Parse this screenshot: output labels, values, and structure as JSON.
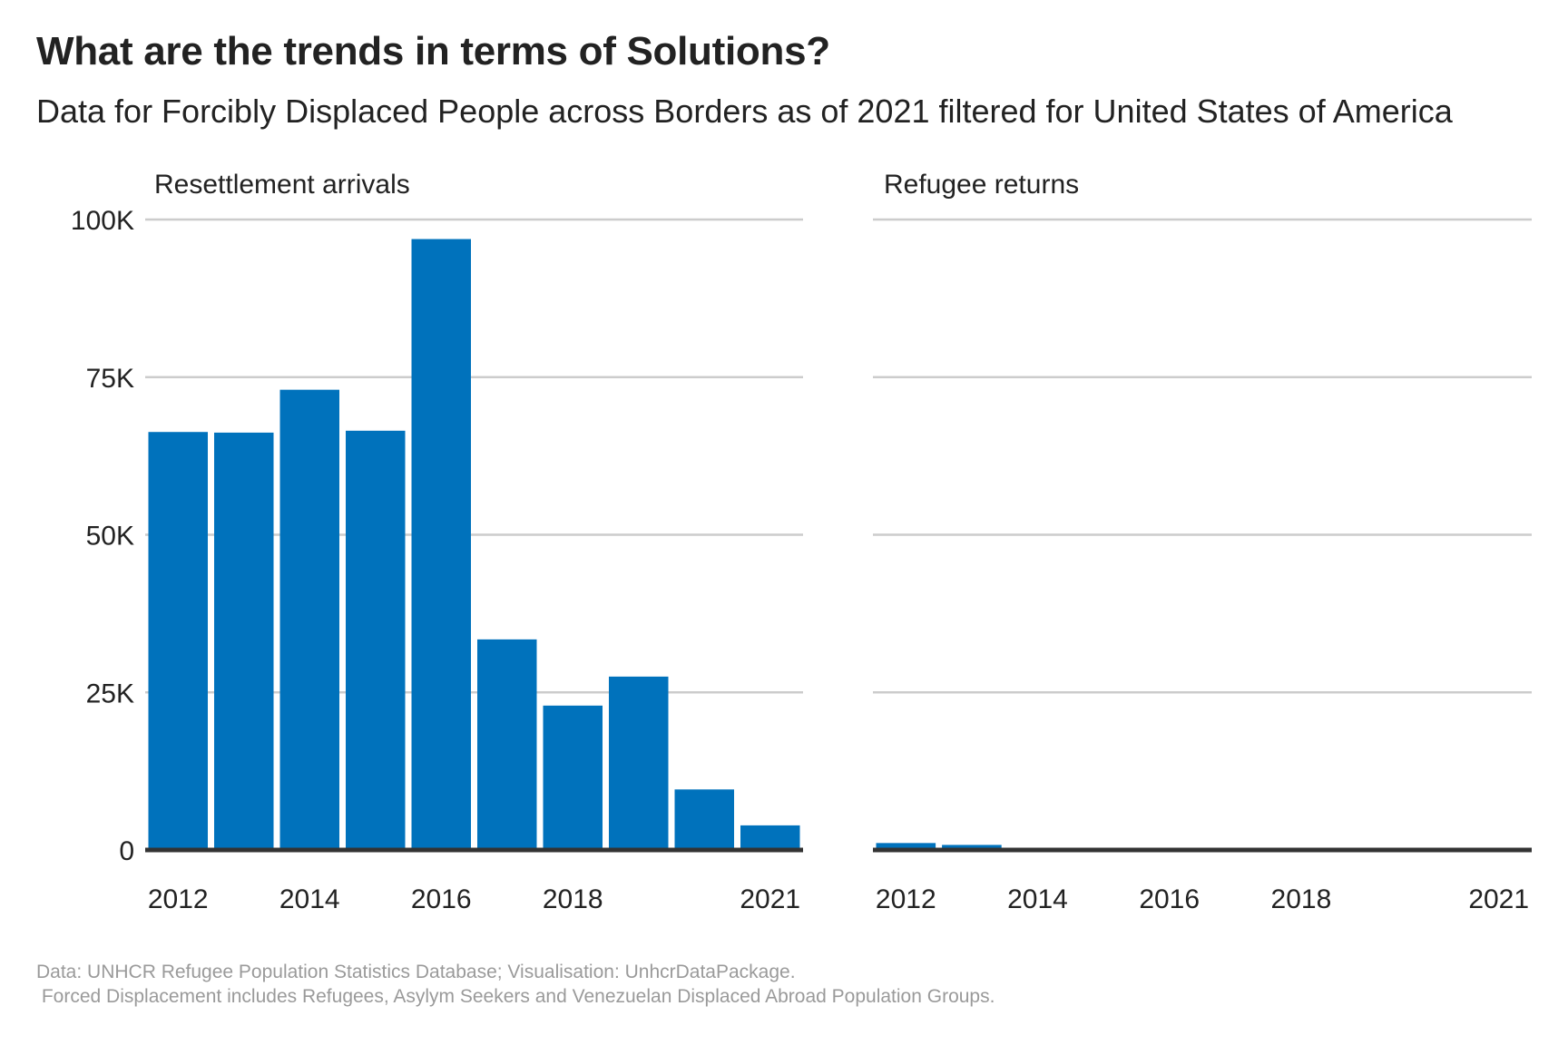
{
  "title": "What are the trends in terms of Solutions?",
  "subtitle": "Data for Forcibly Displaced People across Borders as of 2021 filtered for United States of America",
  "caption_line1": "Data: UNHCR Refugee Population Statistics Database; Visualisation: UnhcrDataPackage.",
  "caption_line2": " Forced Displacement includes Refugees, Asylym Seekers and Venezuelan Displaced Abroad Population Groups.",
  "colors": {
    "bar": "#0072bc",
    "grid": "#cccccc",
    "baseline": "#333333",
    "text": "#222222",
    "caption": "#9a9a9a"
  },
  "chart_data": [
    {
      "type": "bar",
      "title": "Resettlement arrivals",
      "x": [
        2012,
        2013,
        2014,
        2015,
        2016,
        2017,
        2018,
        2019,
        2020,
        2021
      ],
      "values": [
        66300,
        66200,
        73000,
        66500,
        96900,
        33400,
        22900,
        27500,
        9600,
        3900
      ],
      "x_tick_labels": [
        "2012",
        "2014",
        "2016",
        "2018",
        "2021"
      ],
      "x_tick_values": [
        2012,
        2014,
        2016,
        2018,
        2021
      ],
      "y_tick_labels": [
        "0",
        "25K",
        "50K",
        "75K",
        "100K"
      ],
      "y_tick_values": [
        0,
        25000,
        50000,
        75000,
        100000
      ],
      "ylim": [
        0,
        100000
      ],
      "grid": true
    },
    {
      "type": "bar",
      "title": "Refugee returns",
      "x": [
        2012,
        2013,
        2014,
        2015,
        2016,
        2017,
        2018,
        2019,
        2020,
        2021
      ],
      "values": [
        1100,
        800,
        0,
        0,
        0,
        0,
        0,
        0,
        0,
        0
      ],
      "x_tick_labels": [
        "2012",
        "2014",
        "2016",
        "2018",
        "2021"
      ],
      "x_tick_values": [
        2012,
        2014,
        2016,
        2018,
        2021
      ],
      "y_tick_values": [
        0,
        25000,
        50000,
        75000,
        100000
      ],
      "ylim": [
        0,
        100000
      ],
      "grid": true
    }
  ]
}
